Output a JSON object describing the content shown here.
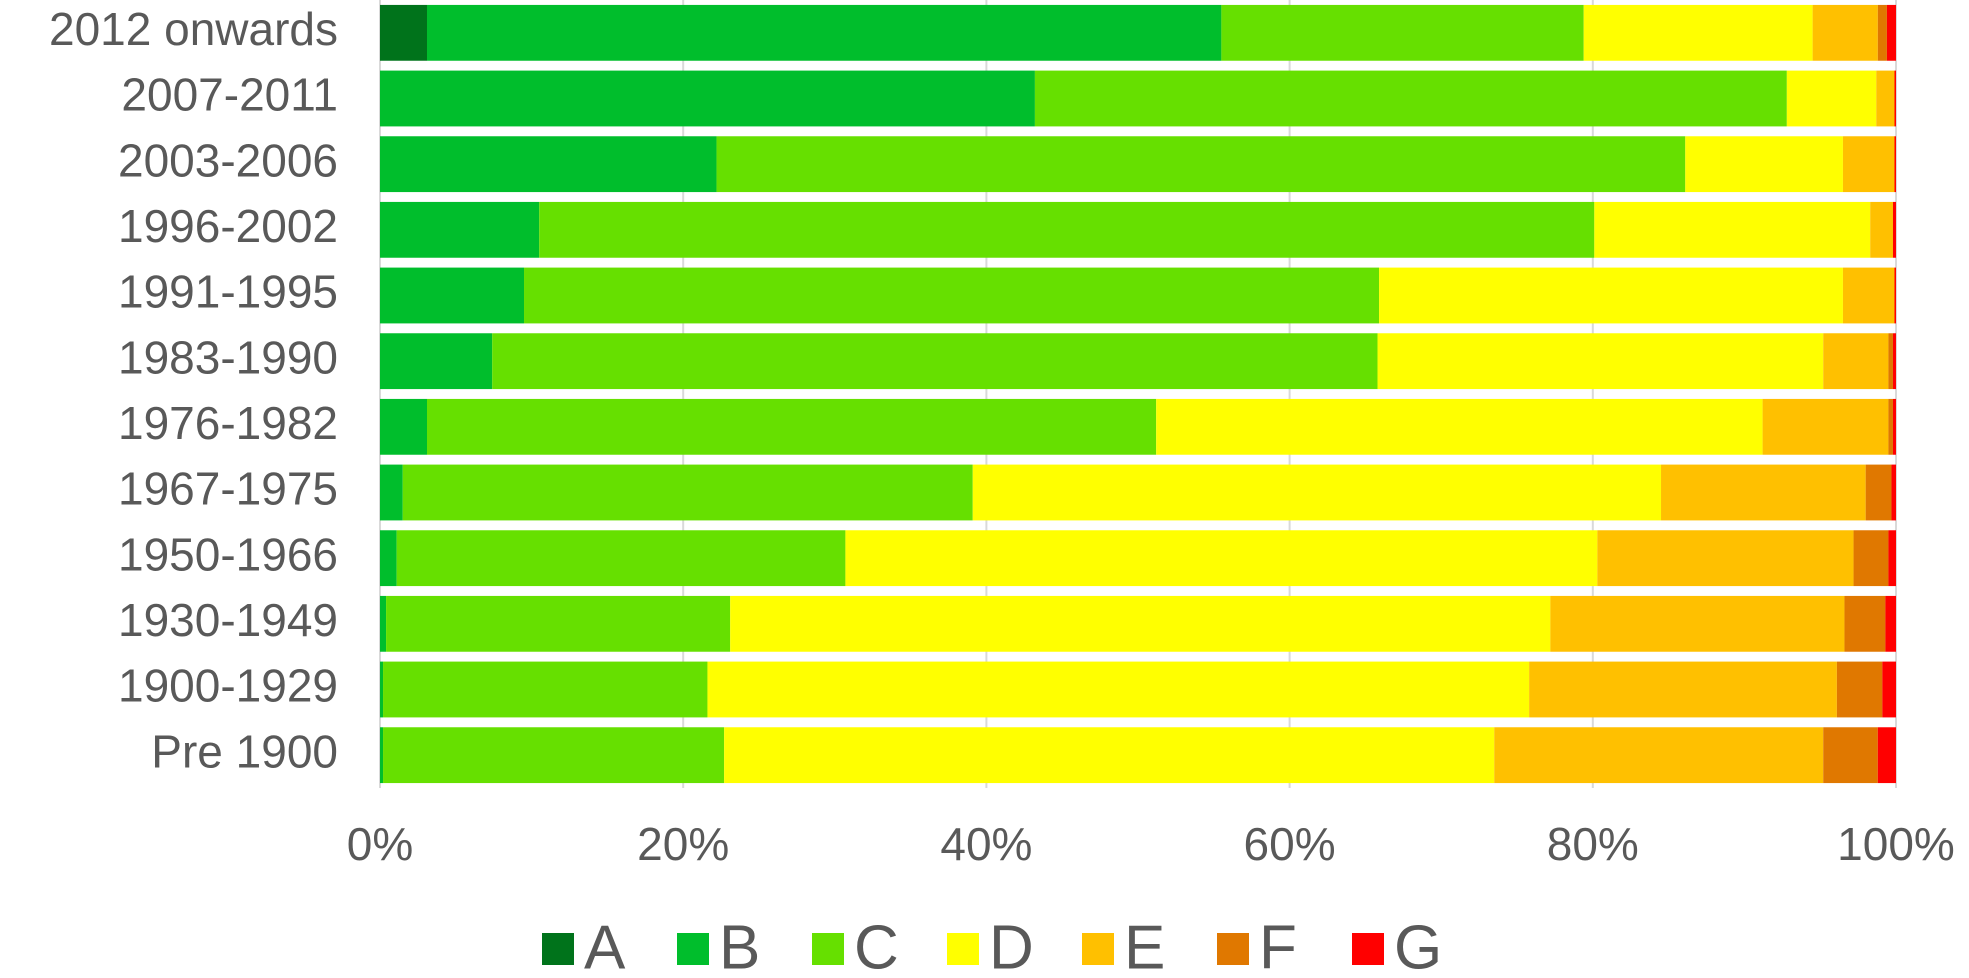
{
  "chart_data": {
    "type": "bar",
    "orientation": "horizontal",
    "stacked": true,
    "categories": [
      "2012 onwards",
      "2007-2011",
      "2003-2006",
      "1996-2002",
      "1991-1995",
      "1983-1990",
      "1976-1982",
      "1967-1975",
      "1950-1966",
      "1930-1949",
      "1900-1929",
      "Pre 1900"
    ],
    "series": [
      {
        "name": "A",
        "color": "#00731b",
        "values": [
          3.1,
          0,
          0,
          0,
          0,
          0,
          0,
          0,
          0,
          0,
          0,
          0
        ]
      },
      {
        "name": "B",
        "color": "#00be2c",
        "values": [
          52.4,
          43.2,
          22.2,
          10.5,
          9.5,
          7.4,
          3.1,
          1.5,
          1.1,
          0.4,
          0.2,
          0.2
        ]
      },
      {
        "name": "C",
        "color": "#66e000",
        "values": [
          23.9,
          49.6,
          63.9,
          69.6,
          56.4,
          58.4,
          48.1,
          37.6,
          29.6,
          22.7,
          21.4,
          22.5
        ]
      },
      {
        "name": "D",
        "color": "#ffff00",
        "values": [
          15.1,
          5.9,
          10.4,
          18.2,
          30.6,
          29.4,
          40.0,
          45.4,
          49.6,
          54.1,
          54.2,
          50.8
        ]
      },
      {
        "name": "E",
        "color": "#ffc000",
        "values": [
          4.3,
          1.2,
          3.4,
          1.5,
          3.4,
          4.3,
          8.3,
          13.5,
          16.9,
          19.4,
          20.3,
          21.7
        ]
      },
      {
        "name": "F",
        "color": "#e07800",
        "values": [
          0.6,
          0,
          0,
          0,
          0,
          0.3,
          0.3,
          1.7,
          2.3,
          2.7,
          3.0,
          3.6
        ]
      },
      {
        "name": "G",
        "color": "#ff0000",
        "values": [
          0.6,
          0.1,
          0.1,
          0.2,
          0.1,
          0.2,
          0.2,
          0.3,
          0.5,
          0.7,
          0.9,
          1.2
        ]
      }
    ],
    "xlim": [
      0,
      100
    ],
    "xticks": [
      {
        "value": 0,
        "label": "0%"
      },
      {
        "value": 20,
        "label": "20%"
      },
      {
        "value": 40,
        "label": "40%"
      },
      {
        "value": 60,
        "label": "60%"
      },
      {
        "value": 80,
        "label": "80%"
      },
      {
        "value": 100,
        "label": "100%"
      }
    ],
    "grid": true,
    "legend": "bottom"
  }
}
